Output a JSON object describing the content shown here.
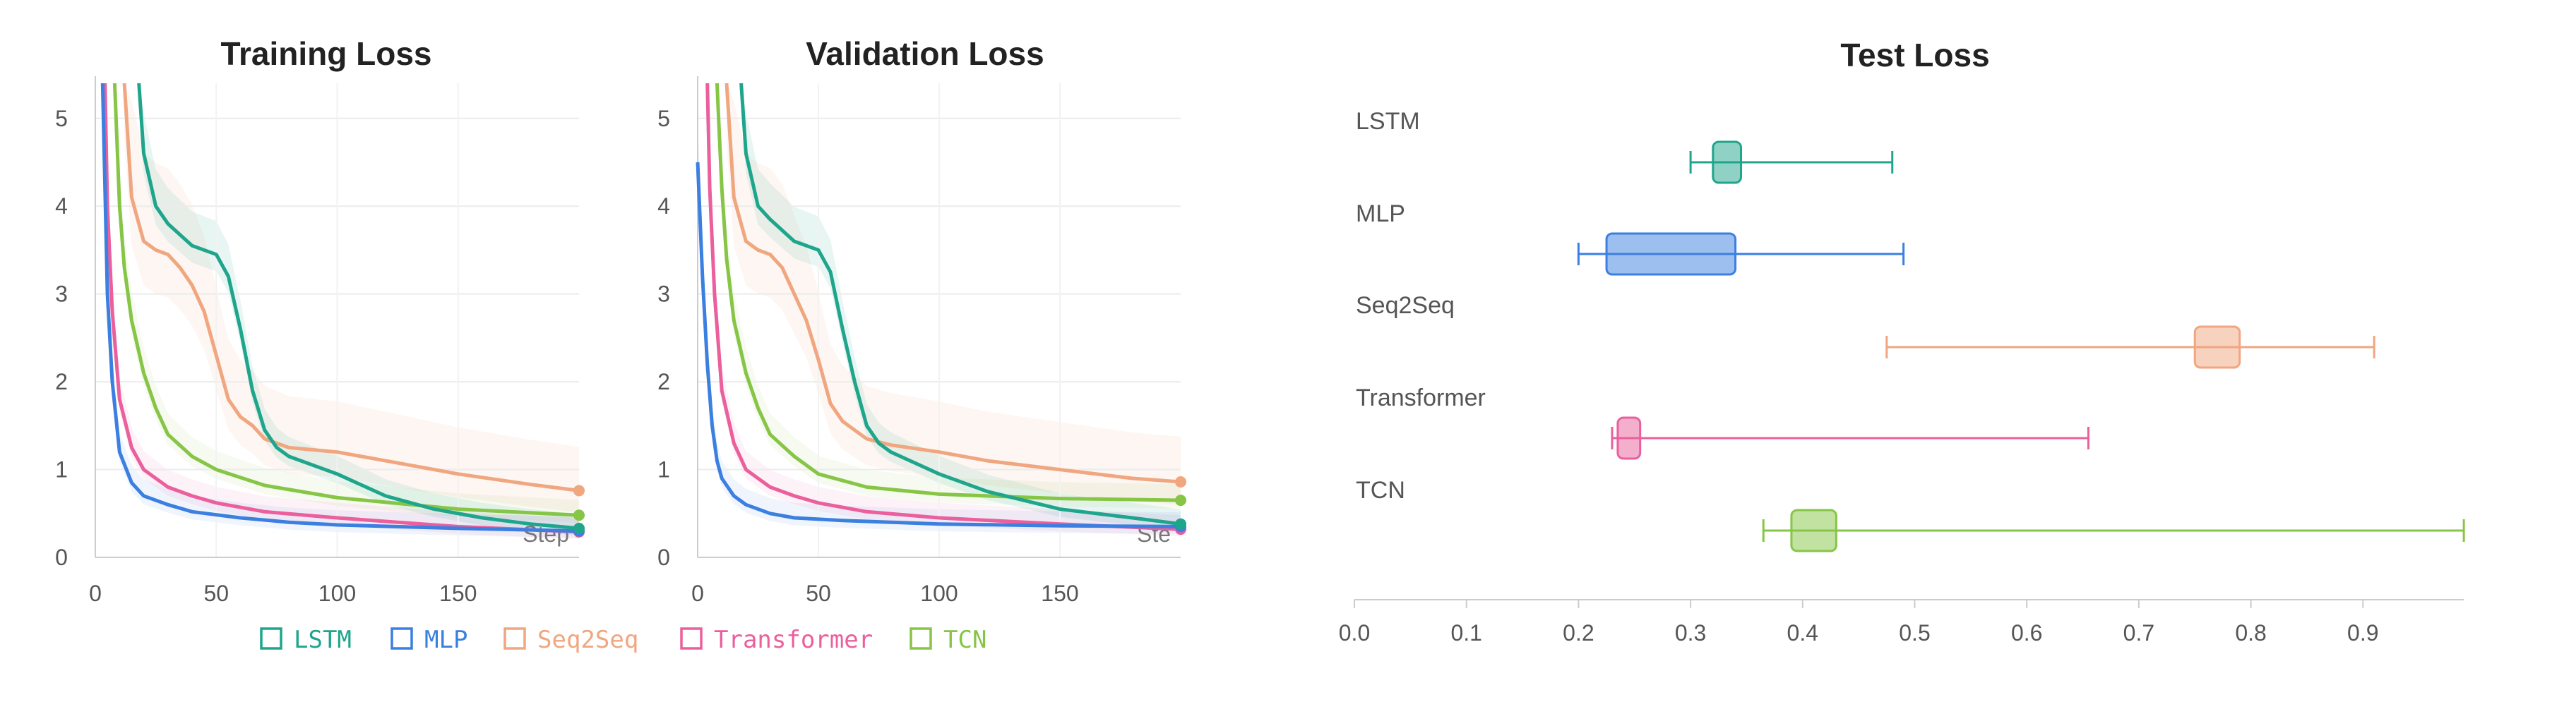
{
  "colors": {
    "LSTM": "#1fa58c",
    "MLP": "#3b7fe0",
    "Seq2Seq": "#f0a67f",
    "Transformer": "#ea5f9c",
    "TCN": "#86c545"
  },
  "legend": [
    "LSTM",
    "MLP",
    "Seq2Seq",
    "Transformer",
    "TCN"
  ],
  "chart_data": [
    {
      "type": "line",
      "title": "Training Loss",
      "xlabel": "Step",
      "ylabel": "",
      "xlim": [
        0,
        200
      ],
      "ylim": [
        0,
        5.4
      ],
      "xticks": [
        0,
        50,
        100,
        150
      ],
      "yticks": [
        0,
        1,
        2,
        3,
        4,
        5
      ],
      "grid": true,
      "legend_position": "bottom",
      "series": [
        {
          "name": "LSTM",
          "x": [
            18,
            20,
            25,
            30,
            40,
            50,
            55,
            60,
            65,
            70,
            75,
            80,
            100,
            120,
            140,
            160,
            180,
            200
          ],
          "y": [
            5.4,
            4.6,
            4.0,
            3.8,
            3.55,
            3.45,
            3.2,
            2.6,
            1.9,
            1.45,
            1.25,
            1.15,
            0.95,
            0.7,
            0.55,
            0.45,
            0.38,
            0.33
          ]
        },
        {
          "name": "MLP",
          "x": [
            3,
            4,
            5,
            7,
            10,
            15,
            20,
            30,
            40,
            60,
            80,
            100,
            150,
            200
          ],
          "y": [
            5.4,
            4.2,
            3.0,
            2.0,
            1.2,
            0.85,
            0.7,
            0.6,
            0.52,
            0.45,
            0.4,
            0.37,
            0.33,
            0.3
          ]
        },
        {
          "name": "Seq2Seq",
          "x": [
            12,
            15,
            20,
            25,
            30,
            35,
            40,
            45,
            50,
            55,
            60,
            65,
            70,
            80,
            100,
            120,
            150,
            180,
            200
          ],
          "y": [
            5.4,
            4.1,
            3.6,
            3.5,
            3.45,
            3.3,
            3.1,
            2.8,
            2.3,
            1.8,
            1.6,
            1.5,
            1.35,
            1.25,
            1.2,
            1.1,
            0.95,
            0.83,
            0.76
          ]
        },
        {
          "name": "Transformer",
          "x": [
            4,
            5,
            7,
            10,
            15,
            20,
            30,
            40,
            50,
            70,
            100,
            150,
            200
          ],
          "y": [
            5.4,
            4.0,
            2.8,
            1.8,
            1.25,
            1.0,
            0.8,
            0.7,
            0.62,
            0.52,
            0.45,
            0.35,
            0.29
          ]
        },
        {
          "name": "TCN",
          "x": [
            8,
            10,
            12,
            15,
            20,
            25,
            30,
            40,
            50,
            70,
            100,
            150,
            200
          ],
          "y": [
            5.4,
            4.0,
            3.3,
            2.7,
            2.1,
            1.7,
            1.4,
            1.15,
            1.0,
            0.82,
            0.68,
            0.55,
            0.48
          ]
        }
      ]
    },
    {
      "type": "line",
      "title": "Validation Loss",
      "xlabel": "Ste",
      "ylabel": "",
      "xlim": [
        0,
        200
      ],
      "ylim": [
        0,
        5.4
      ],
      "xticks": [
        0,
        50,
        100,
        150
      ],
      "yticks": [
        0,
        1,
        2,
        3,
        4,
        5
      ],
      "grid": true,
      "legend_position": "bottom",
      "series": [
        {
          "name": "LSTM",
          "x": [
            18,
            20,
            25,
            30,
            40,
            50,
            55,
            60,
            65,
            70,
            75,
            80,
            100,
            120,
            150,
            180,
            200
          ],
          "y": [
            5.4,
            4.6,
            4.0,
            3.85,
            3.6,
            3.5,
            3.25,
            2.6,
            2.0,
            1.5,
            1.3,
            1.2,
            0.95,
            0.75,
            0.55,
            0.45,
            0.38
          ]
        },
        {
          "name": "MLP",
          "x": [
            0,
            2,
            4,
            6,
            8,
            10,
            15,
            20,
            30,
            40,
            60,
            80,
            100,
            150,
            200
          ],
          "y": [
            4.5,
            3.2,
            2.2,
            1.5,
            1.1,
            0.9,
            0.7,
            0.6,
            0.5,
            0.45,
            0.42,
            0.4,
            0.38,
            0.36,
            0.35
          ]
        },
        {
          "name": "Seq2Seq",
          "x": [
            12,
            15,
            20,
            25,
            30,
            35,
            40,
            45,
            50,
            55,
            60,
            65,
            70,
            80,
            100,
            120,
            150,
            180,
            200
          ],
          "y": [
            5.4,
            4.1,
            3.6,
            3.5,
            3.45,
            3.3,
            3.0,
            2.7,
            2.25,
            1.75,
            1.55,
            1.45,
            1.35,
            1.28,
            1.2,
            1.1,
            1.0,
            0.9,
            0.86
          ]
        },
        {
          "name": "Transformer",
          "x": [
            4,
            5,
            7,
            10,
            15,
            20,
            30,
            40,
            50,
            70,
            100,
            150,
            200
          ],
          "y": [
            5.4,
            4.2,
            3.0,
            1.9,
            1.3,
            1.0,
            0.8,
            0.7,
            0.62,
            0.52,
            0.45,
            0.38,
            0.32
          ]
        },
        {
          "name": "TCN",
          "x": [
            8,
            10,
            12,
            15,
            20,
            25,
            30,
            40,
            50,
            70,
            100,
            150,
            200
          ],
          "y": [
            5.4,
            4.2,
            3.4,
            2.7,
            2.1,
            1.7,
            1.4,
            1.15,
            0.95,
            0.8,
            0.72,
            0.67,
            0.65
          ]
        }
      ]
    },
    {
      "type": "box",
      "title": "Test Loss",
      "xlabel": "",
      "ylabel": "",
      "xlim": [
        0,
        1.0
      ],
      "xticks": [
        0.0,
        0.1,
        0.2,
        0.3,
        0.4,
        0.5,
        0.6,
        0.7,
        0.8,
        0.9
      ],
      "xtick_labels": [
        "0.0",
        "0.1",
        "0.2",
        "0.3",
        "0.4",
        "0.5",
        "0.6",
        "0.7",
        "0.8",
        "0.9"
      ],
      "grid": false,
      "boxes": [
        {
          "name": "LSTM",
          "min": 0.3,
          "q1": 0.32,
          "q3": 0.345,
          "max": 0.48
        },
        {
          "name": "MLP",
          "min": 0.2,
          "q1": 0.225,
          "q3": 0.34,
          "max": 0.49
        },
        {
          "name": "Seq2Seq",
          "min": 0.475,
          "q1": 0.75,
          "q3": 0.79,
          "max": 0.91
        },
        {
          "name": "Transformer",
          "min": 0.23,
          "q1": 0.235,
          "q3": 0.255,
          "max": 0.655
        },
        {
          "name": "TCN",
          "min": 0.365,
          "q1": 0.39,
          "q3": 0.43,
          "max": 0.99
        }
      ]
    }
  ]
}
